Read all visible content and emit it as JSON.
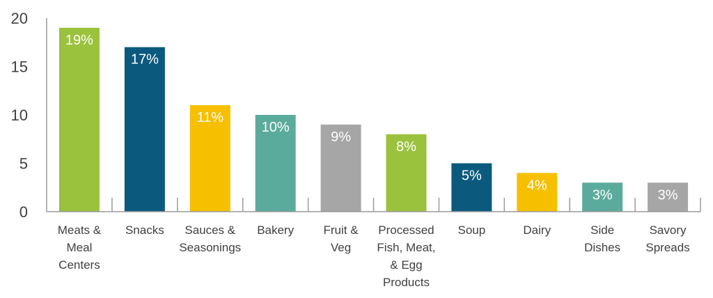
{
  "chart_data": {
    "type": "bar",
    "title": "",
    "xlabel": "",
    "ylabel": "",
    "ylim": [
      0,
      20
    ],
    "yticks": [
      0,
      5,
      10,
      15,
      20
    ],
    "grid": false,
    "legend": "none",
    "categories": [
      "Meats & Meal Centers",
      "Snacks",
      "Sauces & Seasonings",
      "Bakery",
      "Fruit & Veg",
      "Processed Fish, Meat, & Egg Products",
      "Soup",
      "Dairy",
      "Side Dishes",
      "Savory Spreads"
    ],
    "category_lines": [
      [
        "Meats &",
        "Meal",
        "Centers"
      ],
      [
        "Snacks"
      ],
      [
        "Sauces &",
        "Seasonings"
      ],
      [
        "Bakery"
      ],
      [
        "Fruit &",
        "Veg"
      ],
      [
        "Processed",
        "Fish, Meat,",
        "& Egg",
        "Products"
      ],
      [
        "Soup"
      ],
      [
        "Dairy"
      ],
      [
        "Side",
        "Dishes"
      ],
      [
        "Savory",
        "Spreads"
      ]
    ],
    "values": [
      19,
      17,
      11,
      10,
      9,
      8,
      5,
      4,
      3,
      3
    ],
    "data_labels": [
      "19%",
      "17%",
      "11%",
      "10%",
      "9%",
      "8%",
      "5%",
      "4%",
      "3%",
      "3%"
    ],
    "colors": [
      "#9bc23c",
      "#0b5a7e",
      "#f6c000",
      "#5bab9c",
      "#a6a6a6",
      "#9bc23c",
      "#0b5a7e",
      "#f6c000",
      "#5bab9c",
      "#a6a6a6"
    ]
  }
}
